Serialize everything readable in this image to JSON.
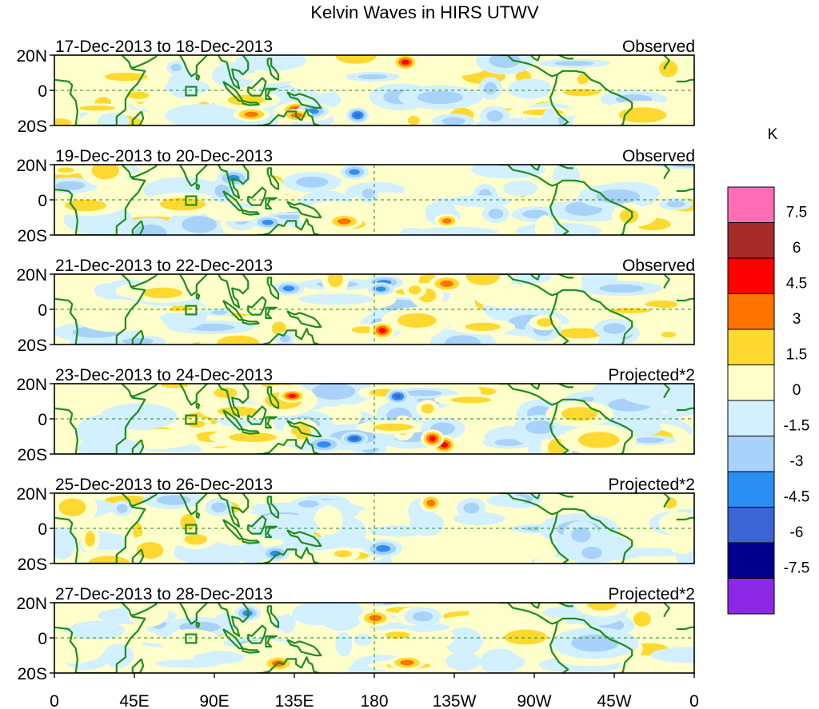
{
  "title": "Kelvin Waves in HIRS UTWV",
  "unit_label": "K",
  "lat_labels": [
    "20N",
    "0",
    "20S"
  ],
  "lon_labels": [
    "0",
    "45E",
    "90E",
    "135E",
    "180",
    "135W",
    "90W",
    "45W",
    "0"
  ],
  "panels": [
    {
      "date": "17-Dec-2013 to 18-Dec-2013",
      "type": "Observed",
      "seed": 11,
      "amp": 0.95,
      "meridian": false
    },
    {
      "date": "19-Dec-2013 to 20-Dec-2013",
      "type": "Observed",
      "seed": 23,
      "amp": 0.85,
      "meridian": true
    },
    {
      "date": "21-Dec-2013 to 22-Dec-2013",
      "type": "Observed",
      "seed": 37,
      "amp": 0.9,
      "meridian": true
    },
    {
      "date": "23-Dec-2013 to 24-Dec-2013",
      "type": "Projected*2",
      "seed": 41,
      "amp": 1.0,
      "meridian": true
    },
    {
      "date": "25-Dec-2013 to 26-Dec-2013",
      "type": "Projected*2",
      "seed": 53,
      "amp": 0.75,
      "meridian": true
    },
    {
      "date": "27-Dec-2013 to 28-Dec-2013",
      "type": "Projected*2",
      "seed": 67,
      "amp": 0.7,
      "meridian": true
    }
  ],
  "colorbar": {
    "labels": [
      "7.5",
      "6",
      "4.5",
      "3",
      "1.5",
      "0",
      "-1.5",
      "-3",
      "-4.5",
      "-6",
      "-7.5"
    ],
    "colors": [
      "#ff6eb4",
      "#a52a2a",
      "#ff0000",
      "#ff7300",
      "#ffd92f",
      "#ffffcc",
      "#d2f0ff",
      "#a9d2fa",
      "#2c8ef3",
      "#3c64d2",
      "#00008c",
      "#8c28e6"
    ]
  },
  "colors": {
    "land_outline": "#1e8c1e",
    "frame": "#000000",
    "equator_line": "#1e8c1e"
  }
}
